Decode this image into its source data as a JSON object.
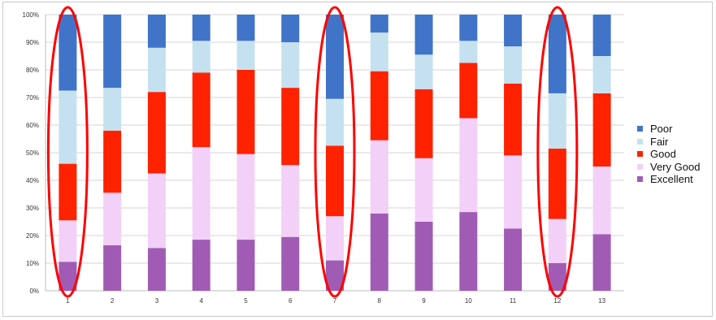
{
  "chart_data": {
    "type": "bar",
    "stacked": true,
    "categories": [
      "1",
      "2",
      "3",
      "4",
      "5",
      "6",
      "7",
      "8",
      "9",
      "10",
      "11",
      "12",
      "13"
    ],
    "y_ticks": [
      "0%",
      "10%",
      "20%",
      "30%",
      "40%",
      "50%",
      "60%",
      "70%",
      "80%",
      "90%",
      "100%"
    ],
    "ylim": [
      0,
      100
    ],
    "grid": true,
    "legend_position": "right",
    "series": [
      {
        "name": "Excellent",
        "color": "#a05cb4",
        "values": [
          10.5,
          16.5,
          15.5,
          18.5,
          18.5,
          19.5,
          11,
          28,
          25,
          28.5,
          22.5,
          10,
          20.5
        ]
      },
      {
        "name": "Very Good",
        "color": "#f3d0f7",
        "values": [
          15,
          19,
          27,
          33.5,
          31,
          26,
          16,
          26.5,
          23,
          34,
          26.5,
          16,
          24.5
        ]
      },
      {
        "name": "Good",
        "color": "#ff2200",
        "values": [
          20.5,
          22.5,
          29.5,
          27,
          30.5,
          28,
          25.5,
          25,
          25,
          20,
          26,
          25.5,
          26.5
        ]
      },
      {
        "name": "Fair",
        "color": "#c5e1f0",
        "values": [
          26.5,
          15.5,
          16,
          11.5,
          10.5,
          16.5,
          17,
          14,
          12.5,
          8,
          13.5,
          20,
          13.5
        ]
      },
      {
        "name": "Poor",
        "color": "#3f74c8",
        "values": [
          27.5,
          26.5,
          12,
          9.5,
          9.5,
          10,
          30.5,
          6.5,
          14.5,
          9.5,
          11.5,
          28.5,
          15
        ]
      }
    ],
    "legend_order": [
      "Poor",
      "Fair",
      "Good",
      "Very Good",
      "Excellent"
    ],
    "annotations": {
      "highlighted_categories": [
        "1",
        "7",
        "12"
      ],
      "highlight_color": "#ff0000"
    }
  }
}
